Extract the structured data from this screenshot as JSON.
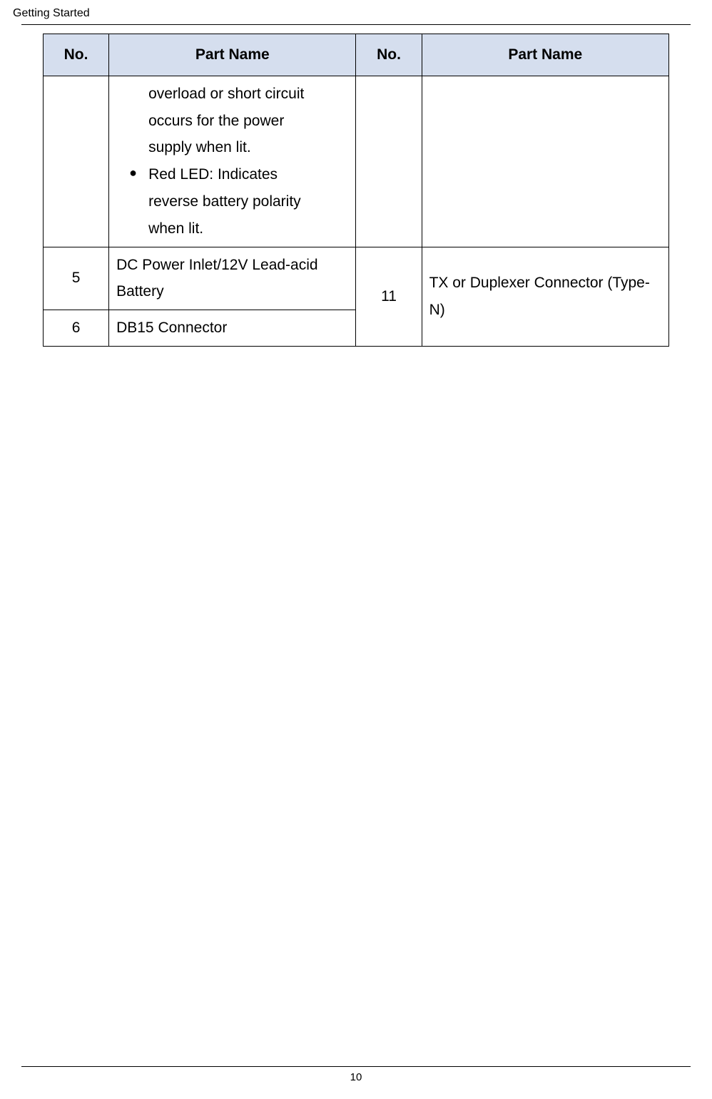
{
  "header": {
    "section": "Getting Started"
  },
  "table": {
    "columns": {
      "no_label": "No.",
      "part_label": "Part Name"
    },
    "row_continuation": {
      "line1": "overload or short circuit",
      "line2": "occurs for the power",
      "line3": "supply when lit.",
      "bullet_line1": "Red LED: Indicates",
      "bullet_line2": "reverse battery polarity",
      "bullet_line3": "when lit."
    },
    "row5": {
      "no": "5",
      "name": "DC Power Inlet/12V Lead-acid Battery"
    },
    "row6": {
      "no": "6",
      "name": "DB15 Connector"
    },
    "row11": {
      "no": "11",
      "name": "TX or Duplexer Connector (Type-N)"
    },
    "colors": {
      "header_bg": "#d5deee",
      "border": "#000000",
      "text": "#000000",
      "background": "#ffffff"
    }
  },
  "footer": {
    "page_number": "10"
  }
}
